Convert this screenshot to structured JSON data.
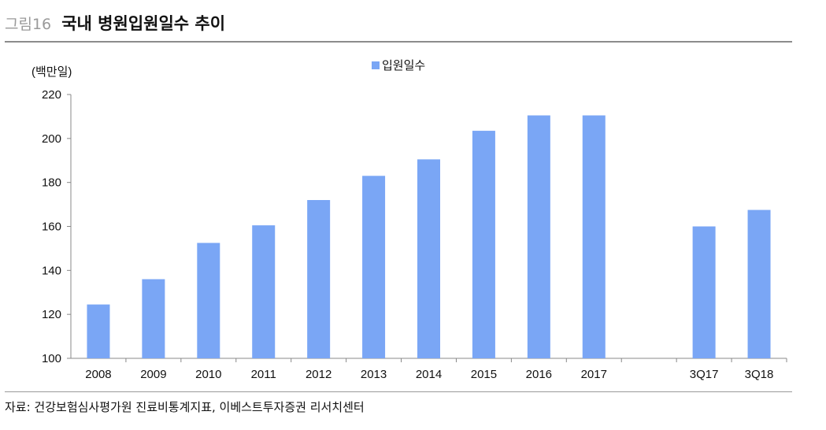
{
  "header": {
    "figure_label": "그림16",
    "title": "국내 병원입원일수 추이"
  },
  "source": "자료: 건강보험심사평가원 진료비통계지표, 이베스트투자증권 리서치센터",
  "colors": {
    "bar": "#7aa6f5",
    "axis": "#888888",
    "rule": "#8c8c8c"
  },
  "chart_data": {
    "type": "bar",
    "ylabel": "(백만일)",
    "ylim": [
      100,
      220
    ],
    "yticks": [
      "100",
      "120",
      "140",
      "160",
      "180",
      "200",
      "220"
    ],
    "categories": [
      "2008",
      "2009",
      "2010",
      "2011",
      "2012",
      "2013",
      "2014",
      "2015",
      "2016",
      "2017",
      "",
      "3Q17",
      "3Q18"
    ],
    "series": [
      {
        "name": "입원일수",
        "values": [
          124.5,
          136,
          152.5,
          160.5,
          172,
          183,
          190.5,
          203.5,
          210.5,
          210.5,
          null,
          160,
          167.5
        ]
      }
    ],
    "legend_position": "top",
    "grid": false
  }
}
